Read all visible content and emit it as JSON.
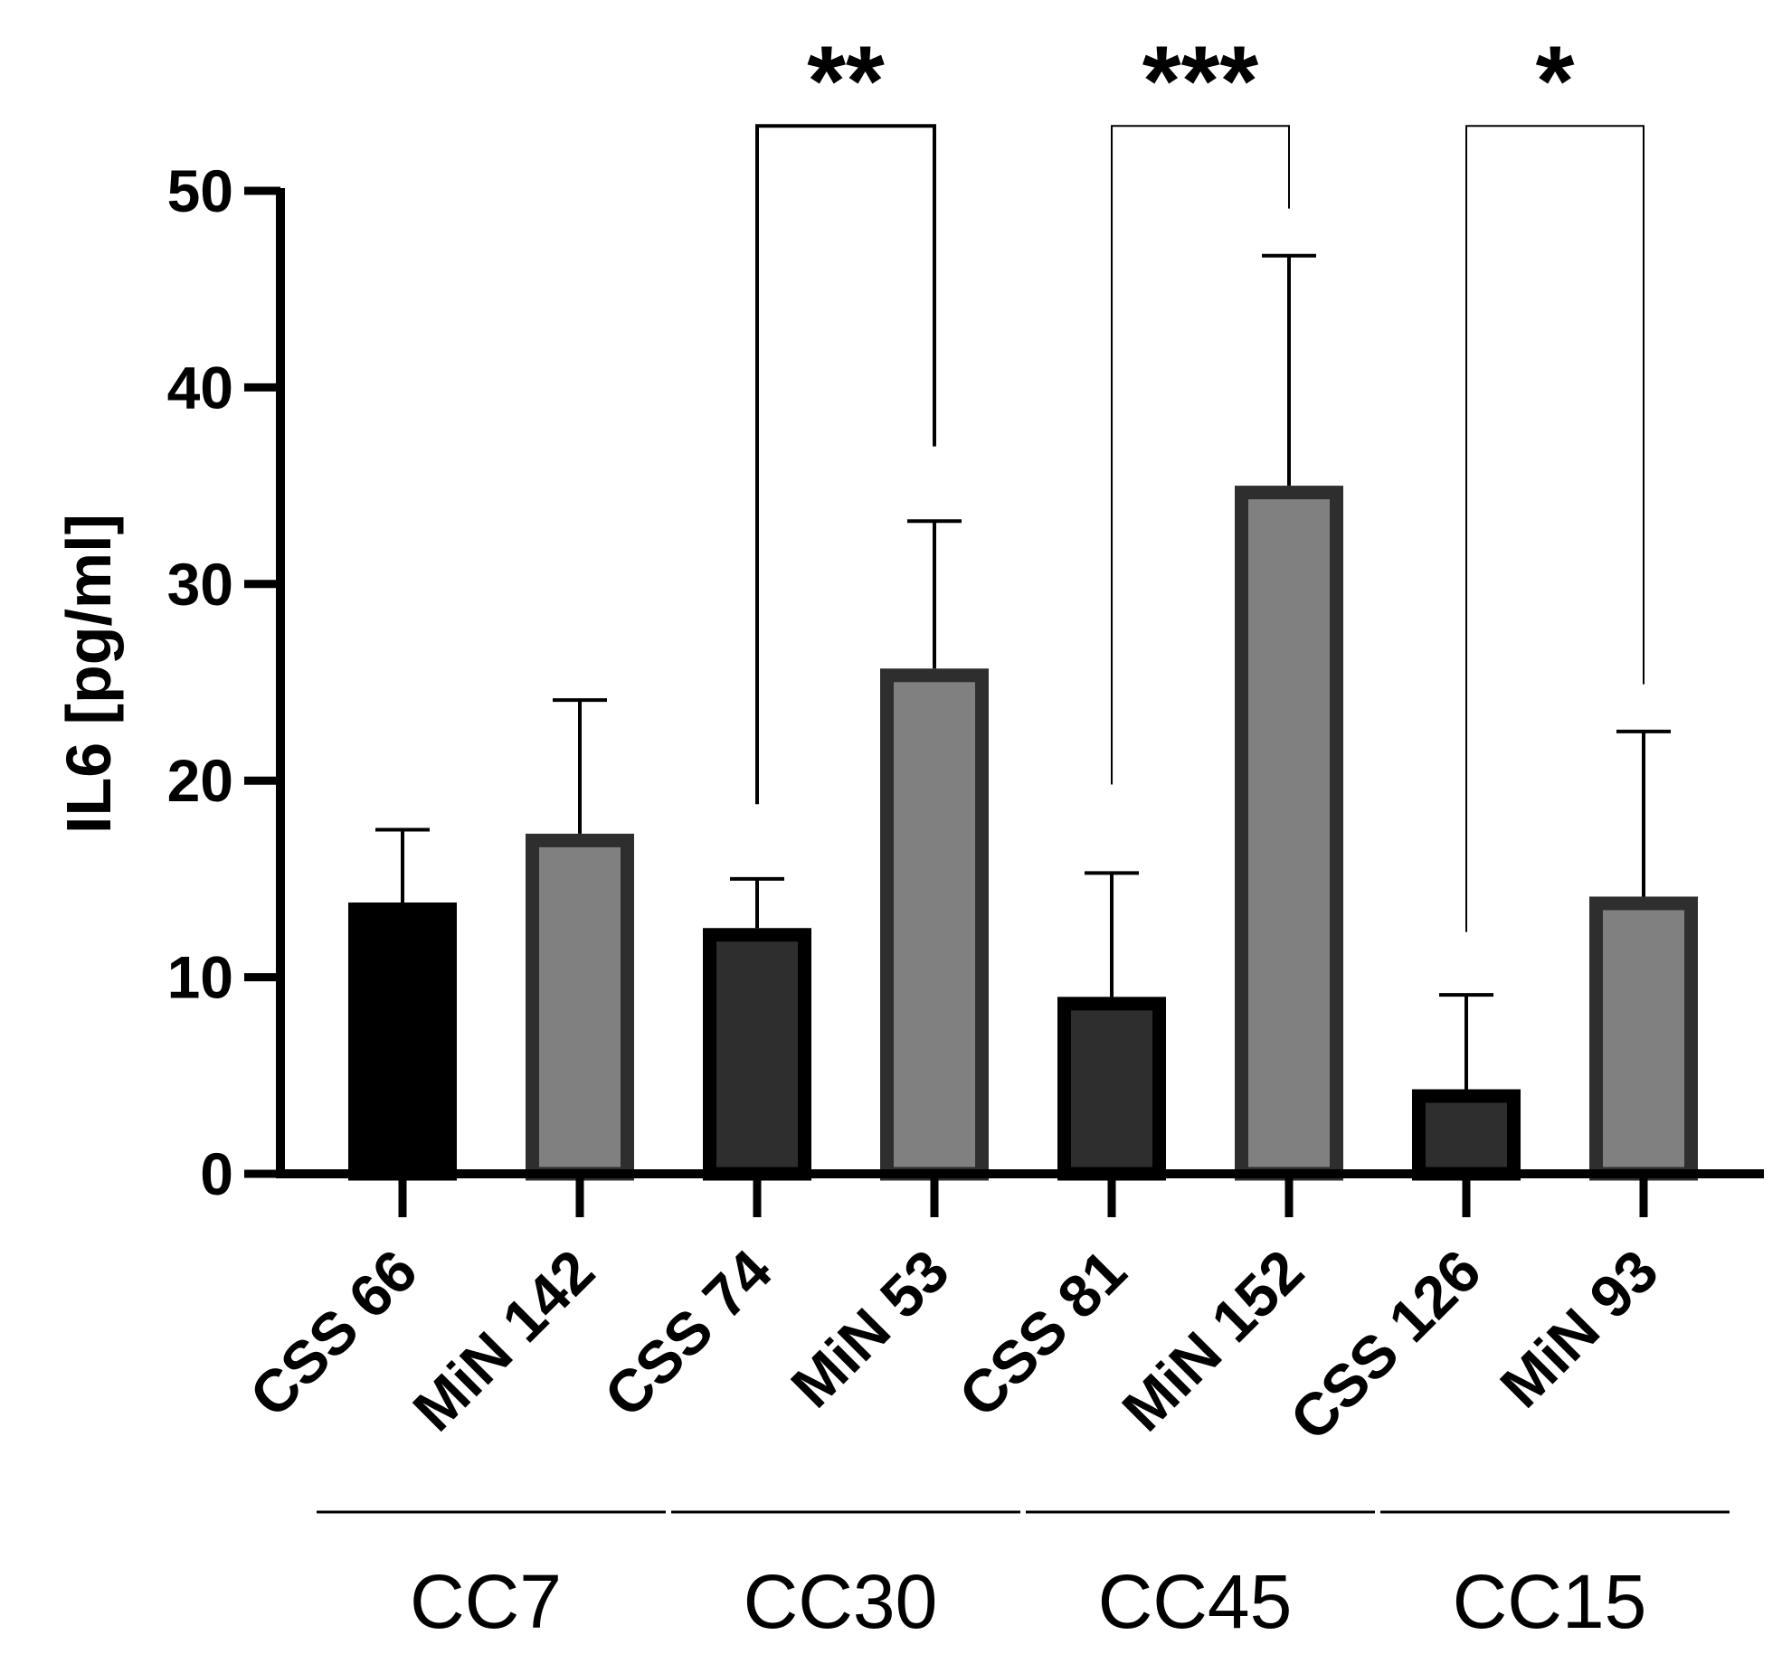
{
  "chart_data": {
    "type": "bar",
    "title": "",
    "xlabel": "",
    "ylabel": "IL6 [pg/ml]",
    "ylim": [
      0,
      50
    ],
    "yticks": [
      0,
      10,
      20,
      30,
      40,
      50
    ],
    "categories": [
      "CSS 66",
      "MiN 142",
      "CSS 74",
      "MiN 53",
      "CSS 81",
      "MiN 152",
      "CSS 126",
      "MiN 93"
    ],
    "values": [
      13.8,
      17.3,
      12.5,
      25.7,
      9.0,
      35.0,
      4.3,
      14.1
    ],
    "errors": [
      3.7,
      6.8,
      2.5,
      7.5,
      6.3,
      11.7,
      4.8,
      8.4
    ],
    "fills": [
      "#000000",
      "#808080",
      "#2e2e2e",
      "#808080",
      "#2e2e2e",
      "#808080",
      "#2e2e2e",
      "#808080"
    ],
    "strokes": [
      "#000000",
      "#2e2e2e",
      "#000000",
      "#2e2e2e",
      "#000000",
      "#2e2e2e",
      "#000000",
      "#2e2e2e"
    ],
    "groups": [
      {
        "label": "CC7",
        "members": [
          0,
          1
        ]
      },
      {
        "label": "CC30",
        "members": [
          2,
          3
        ]
      },
      {
        "label": "CC45",
        "members": [
          4,
          5
        ]
      },
      {
        "label": "CC15",
        "members": [
          6,
          7
        ]
      }
    ],
    "significance": [
      {
        "from": 2,
        "to": 3,
        "label": "**",
        "bracket_y": 53.3,
        "left_end": 18.8,
        "right_end": 37.0
      },
      {
        "from": 4,
        "to": 5,
        "label": "***",
        "bracket_y": 53.3,
        "left_end": 19.8,
        "right_end": 49.1
      },
      {
        "from": 6,
        "to": 7,
        "label": "*",
        "bracket_y": 53.3,
        "left_end": 12.3,
        "right_end": 24.9
      }
    ]
  }
}
